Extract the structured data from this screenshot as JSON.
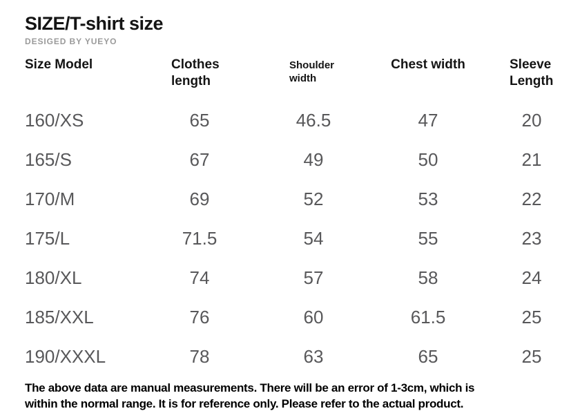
{
  "page": {
    "title": "SIZE/T-shirt size",
    "subtitle": "DESIGED BY YUEYO"
  },
  "table": {
    "columns": [
      "Size Model",
      "Clothes length",
      "Shoulder width",
      "Chest width",
      "Sleeve Length"
    ],
    "rows": [
      [
        "160/XS",
        "65",
        "46.5",
        "47",
        "20"
      ],
      [
        "165/S",
        "67",
        "49",
        "50",
        "21"
      ],
      [
        "170/M",
        "69",
        "52",
        "53",
        "22"
      ],
      [
        "175/L",
        "71.5",
        "54",
        "55",
        "23"
      ],
      [
        "180/XL",
        "74",
        "57",
        "58",
        "24"
      ],
      [
        "185/XXL",
        "76",
        "60",
        "61.5",
        "25"
      ],
      [
        "190/XXXL",
        "78",
        "63",
        "65",
        "25"
      ]
    ]
  },
  "note": {
    "line1": "The above data are manual measurements. There will be an error of 1-3cm, which is",
    "line2": "within the normal range. It is for reference only. Please refer to the actual product."
  },
  "chart_data": {
    "type": "table",
    "title": "SIZE/T-shirt size",
    "subtitle": "DESIGED BY YUEYO",
    "columns": [
      "Size Model",
      "Clothes length",
      "Shoulder width",
      "Chest width",
      "Sleeve Length"
    ],
    "rows": [
      {
        "size_model": "160/XS",
        "clothes_length": 65,
        "shoulder_width": 46.5,
        "chest_width": 47,
        "sleeve_length": 20
      },
      {
        "size_model": "165/S",
        "clothes_length": 67,
        "shoulder_width": 49,
        "chest_width": 50,
        "sleeve_length": 21
      },
      {
        "size_model": "170/M",
        "clothes_length": 69,
        "shoulder_width": 52,
        "chest_width": 53,
        "sleeve_length": 22
      },
      {
        "size_model": "175/L",
        "clothes_length": 71.5,
        "shoulder_width": 54,
        "chest_width": 55,
        "sleeve_length": 23
      },
      {
        "size_model": "180/XL",
        "clothes_length": 74,
        "shoulder_width": 57,
        "chest_width": 58,
        "sleeve_length": 24
      },
      {
        "size_model": "185/XXL",
        "clothes_length": 76,
        "shoulder_width": 60,
        "chest_width": 61.5,
        "sleeve_length": 25
      },
      {
        "size_model": "190/XXXL",
        "clothes_length": 78,
        "shoulder_width": 63,
        "chest_width": 65,
        "sleeve_length": 25
      }
    ],
    "unit_note": "The above data are manual measurements. There will be an error of 1-3cm, which is within the normal range. It is for reference only. Please refer to the actual product."
  },
  "colors": {
    "background": "#ffffff",
    "header_text": "#141414",
    "data_text": "#58585a",
    "subtitle_text": "#9a9a9a",
    "note_text": "#000000"
  }
}
